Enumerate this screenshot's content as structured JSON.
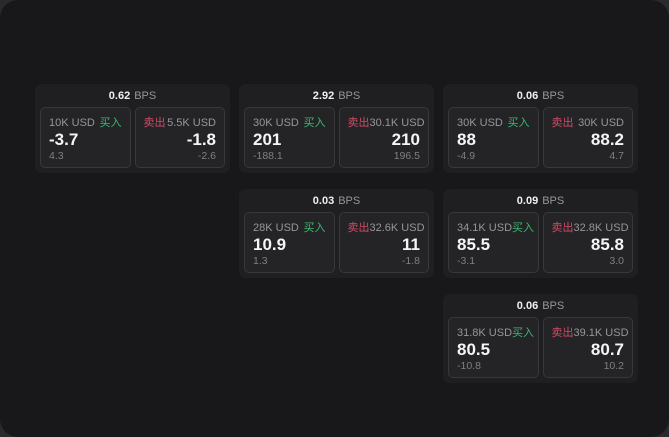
{
  "labels": {
    "buy": "买入",
    "sell": "卖出",
    "bps": "BPS"
  },
  "colors": {
    "buy_accent": "#3bb873",
    "sell_accent": "#cf4b66",
    "window_bg": "#18181a",
    "card_bg": "#1f1f21",
    "panel_bg": "#242427"
  },
  "cards": [
    {
      "row": 1,
      "col": 1,
      "spread": "0.62",
      "buy": {
        "amount": "10K USD",
        "price": "-3.7",
        "delta": "4.3"
      },
      "sell": {
        "amount": "5.5K USD",
        "price": "-1.8",
        "delta": "-2.6"
      }
    },
    {
      "row": 1,
      "col": 2,
      "spread": "2.92",
      "buy": {
        "amount": "30K USD",
        "price": "201",
        "delta": "-188.1"
      },
      "sell": {
        "amount": "30.1K USD",
        "price": "210",
        "delta": "196.5"
      }
    },
    {
      "row": 1,
      "col": 3,
      "spread": "0.06",
      "buy": {
        "amount": "30K USD",
        "price": "88",
        "delta": "-4.9"
      },
      "sell": {
        "amount": "30K USD",
        "price": "88.2",
        "delta": "4.7"
      }
    },
    {
      "row": 2,
      "col": 2,
      "spread": "0.03",
      "buy": {
        "amount": "28K USD",
        "price": "10.9",
        "delta": "1.3"
      },
      "sell": {
        "amount": "32.6K USD",
        "price": "11",
        "delta": "-1.8"
      }
    },
    {
      "row": 2,
      "col": 3,
      "spread": "0.09",
      "buy": {
        "amount": "34.1K USD",
        "price": "85.5",
        "delta": "-3.1"
      },
      "sell": {
        "amount": "32.8K USD",
        "price": "85.8",
        "delta": "3.0"
      }
    },
    {
      "row": 3,
      "col": 3,
      "spread": "0.06",
      "buy": {
        "amount": "31.8K USD",
        "price": "80.5",
        "delta": "-10.8"
      },
      "sell": {
        "amount": "39.1K USD",
        "price": "80.7",
        "delta": "10.2"
      }
    }
  ]
}
